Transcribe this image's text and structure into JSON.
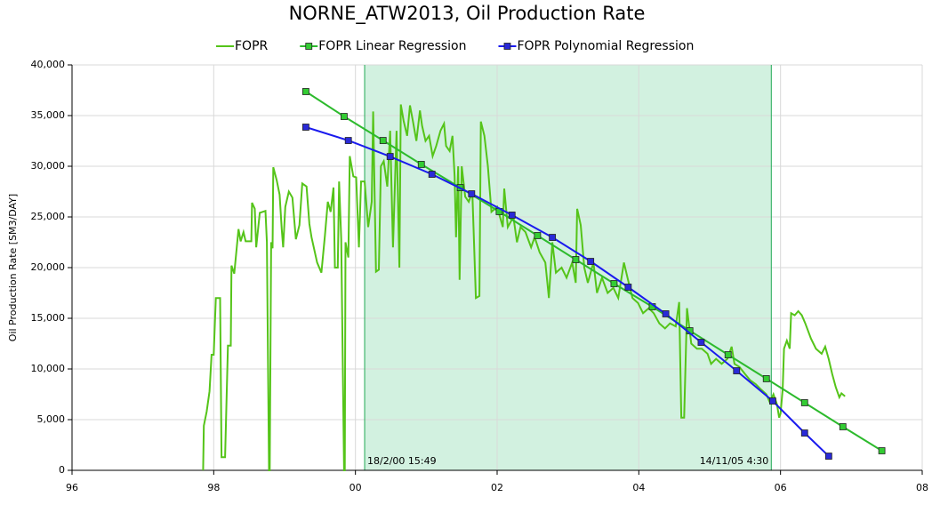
{
  "chart_data": {
    "type": "line",
    "title": "NORNE_ATW2013, Oil Production Rate",
    "y_label": "Oil Production Rate [SM3/DAY]",
    "xlim": [
      1996,
      2008
    ],
    "xticks": [
      {
        "value": 1996,
        "label": "96"
      },
      {
        "value": 1998,
        "label": "98"
      },
      {
        "value": 2000,
        "label": "00"
      },
      {
        "value": 2002,
        "label": "02"
      },
      {
        "value": 2004,
        "label": "04"
      },
      {
        "value": 2006,
        "label": "06"
      },
      {
        "value": 2008,
        "label": "08"
      }
    ],
    "ylim": [
      0,
      40000
    ],
    "yticks": [
      0,
      {
        "value": 5000,
        "label": "5,000"
      },
      {
        "value": 10000,
        "label": "10,000"
      },
      {
        "value": 15000,
        "label": "15,000"
      },
      {
        "value": 20000,
        "label": "20,000"
      },
      {
        "value": 25000,
        "label": "25,000"
      },
      {
        "value": 30000,
        "label": "30,000"
      },
      {
        "value": 35000,
        "label": "35,000"
      },
      {
        "value": 40000,
        "label": "40,000"
      }
    ],
    "grid": true,
    "region": {
      "xlim": [
        2000.13,
        2005.87
      ],
      "labels": [
        "18/2/00 15:49",
        "14/11/05 4:30"
      ],
      "color": "#d2f1e0",
      "edge_color": "#22aa55"
    },
    "series": [
      {
        "name": "FOPR",
        "color": "#55c419",
        "marker": "none",
        "x": [
          1997.85,
          1997.86,
          1997.9,
          1997.94,
          1997.97,
          1998.0,
          1998.03,
          1998.09,
          1998.11,
          1998.16,
          1998.2,
          1998.24,
          1998.25,
          1998.29,
          1998.35,
          1998.38,
          1998.42,
          1998.45,
          1998.53,
          1998.54,
          1998.58,
          1998.6,
          1998.65,
          1998.73,
          1998.75,
          1998.78,
          1998.79,
          1998.81,
          1998.83,
          1998.84,
          1998.89,
          1998.93,
          1998.96,
          1998.98,
          1999.01,
          1999.06,
          1999.11,
          1999.16,
          1999.21,
          1999.25,
          1999.31,
          1999.35,
          1999.38,
          1999.46,
          1999.52,
          1999.57,
          1999.61,
          1999.65,
          1999.69,
          1999.71,
          1999.75,
          1999.77,
          1999.8,
          1999.84,
          1999.85,
          1999.86,
          1999.9,
          1999.92,
          1999.97,
          2000.01,
          2000.05,
          2000.08,
          2000.13,
          2000.18,
          2000.23,
          2000.25,
          2000.29,
          2000.33,
          2000.36,
          2000.4,
          2000.45,
          2000.49,
          2000.53,
          2000.58,
          2000.62,
          2000.64,
          2000.68,
          2000.73,
          2000.77,
          2000.81,
          2000.86,
          2000.91,
          2000.94,
          2000.99,
          2001.04,
          2001.09,
          2001.14,
          2001.2,
          2001.25,
          2001.28,
          2001.33,
          2001.37,
          2001.4,
          2001.42,
          2001.45,
          2001.47,
          2001.5,
          2001.55,
          2001.6,
          2001.65,
          2001.7,
          2001.75,
          2001.77,
          2001.82,
          2001.87,
          2001.92,
          2002.0,
          2002.08,
          2002.1,
          2002.15,
          2002.23,
          2002.28,
          2002.33,
          2002.4,
          2002.48,
          2002.53,
          2002.6,
          2002.68,
          2002.73,
          2002.78,
          2002.83,
          2002.91,
          2002.98,
          2003.06,
          2003.11,
          2003.13,
          2003.18,
          2003.23,
          2003.28,
          2003.36,
          2003.41,
          2003.48,
          2003.56,
          2003.64,
          2003.71,
          2003.79,
          2003.84,
          2003.91,
          2003.99,
          2004.06,
          2004.14,
          2004.21,
          2004.29,
          2004.37,
          2004.44,
          2004.52,
          2004.57,
          2004.6,
          2004.64,
          2004.68,
          2004.74,
          2004.82,
          2004.89,
          2004.97,
          2005.02,
          2005.09,
          2005.17,
          2005.25,
          2005.31,
          2005.35,
          2005.42,
          2005.5,
          2005.57,
          2005.65,
          2005.72,
          2005.8,
          2005.85,
          2005.9,
          2005.95,
          2005.98,
          2006.0,
          2006.03,
          2006.05,
          2006.09,
          2006.13,
          2006.15,
          2006.2,
          2006.25,
          2006.3,
          2006.35,
          2006.43,
          2006.5,
          2006.58,
          2006.63,
          2006.68,
          2006.73,
          2006.78,
          2006.83,
          2006.86,
          2006.91
        ],
        "values": [
          0,
          4400,
          5800,
          7800,
          11400,
          11400,
          17000,
          17000,
          1300,
          1300,
          12300,
          12300,
          20200,
          19400,
          23800,
          22600,
          23500,
          22600,
          22600,
          26400,
          25800,
          22000,
          25400,
          25600,
          22500,
          0,
          0,
          22500,
          21900,
          29900,
          28600,
          27200,
          23800,
          22000,
          26000,
          27500,
          26900,
          22800,
          24200,
          28300,
          28000,
          24300,
          23000,
          20500,
          19500,
          23200,
          26500,
          25500,
          27900,
          20000,
          20000,
          28500,
          22800,
          0,
          0,
          22500,
          21000,
          31000,
          29000,
          28900,
          22000,
          28500,
          28500,
          24000,
          26500,
          35400,
          19600,
          19800,
          30000,
          30500,
          28000,
          33500,
          22000,
          33500,
          20000,
          36100,
          34500,
          33000,
          36000,
          34500,
          32500,
          35500,
          34000,
          32500,
          33000,
          31000,
          32000,
          33500,
          34200,
          32000,
          31500,
          33000,
          29000,
          23000,
          30000,
          18800,
          30000,
          27000,
          26500,
          27500,
          17000,
          17200,
          34400,
          33000,
          30000,
          25500,
          26000,
          24000,
          27800,
          24000,
          25000,
          22500,
          24000,
          23500,
          22000,
          23000,
          21500,
          20500,
          17000,
          22500,
          19500,
          20000,
          19000,
          20500,
          18500,
          25800,
          24200,
          20000,
          18500,
          20500,
          17500,
          19000,
          17500,
          18000,
          17000,
          20500,
          19000,
          17000,
          16500,
          15500,
          16000,
          15500,
          14500,
          14000,
          14500,
          14200,
          16600,
          5200,
          5200,
          16000,
          12500,
          12000,
          12000,
          11500,
          10500,
          11000,
          10500,
          11000,
          12200,
          10500,
          10200,
          9500,
          8900,
          8500,
          8000,
          7500,
          6700,
          7500,
          6500,
          5200,
          5600,
          8000,
          12000,
          12800,
          12000,
          15500,
          15300,
          15700,
          15300,
          14500,
          13000,
          12000,
          11500,
          12200,
          11000,
          9500,
          8200,
          7200,
          7600,
          7300
        ]
      },
      {
        "name": "FOPR Linear Regression",
        "color": "#2dba2d",
        "marker": "square",
        "marker_color": "#33cc33",
        "x": [
          1999.3,
          1999.84,
          2000.39,
          2000.93,
          2001.48,
          2002.03,
          2002.57,
          2003.11,
          2003.65,
          2004.19,
          2004.72,
          2005.26,
          2005.8,
          2006.34,
          2006.88,
          2007.43
        ],
        "values": [
          37370,
          34910,
          32540,
          30180,
          27890,
          25530,
          23160,
          20790,
          18420,
          16140,
          13770,
          11400,
          9040,
          6670,
          4300,
          1930
        ]
      },
      {
        "name": "FOPR Polynomial Regression",
        "color": "#1a1aee",
        "marker": "square",
        "marker_color": "#2a2ad8",
        "x": [
          1999.3,
          1999.9,
          2000.49,
          2001.08,
          2001.64,
          2002.21,
          2002.78,
          2003.32,
          2003.85,
          2004.38,
          2004.88,
          2005.38,
          2005.89,
          2006.34,
          2006.68
        ],
        "values": [
          33860,
          32540,
          30960,
          29210,
          27280,
          25180,
          22980,
          20610,
          18070,
          15440,
          12630,
          9820,
          6840,
          3680,
          1400
        ]
      }
    ]
  }
}
